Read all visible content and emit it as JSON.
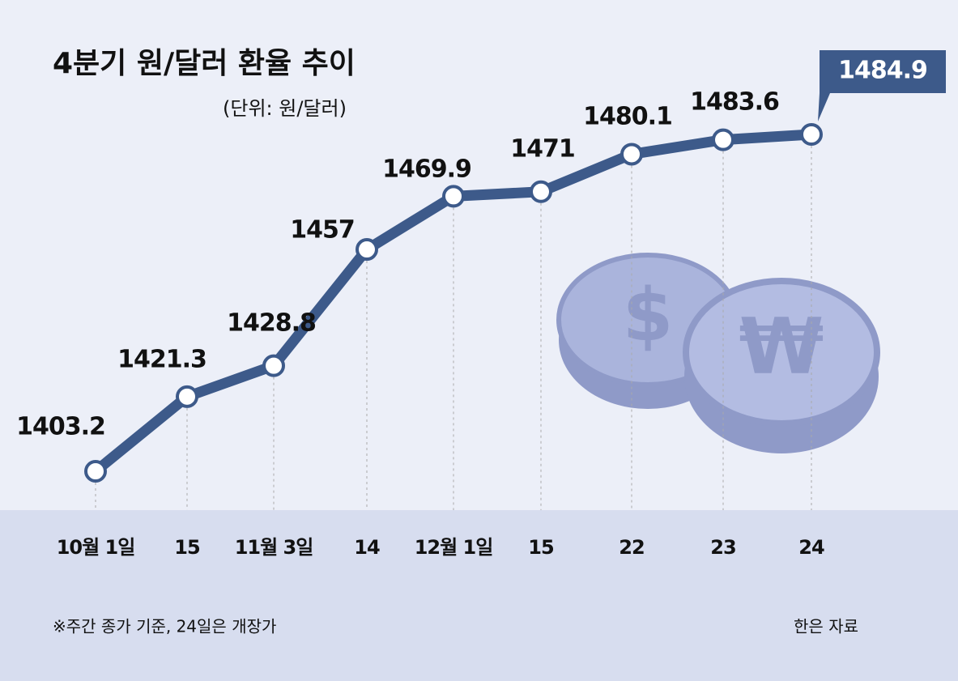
{
  "chart_data": {
    "type": "line",
    "title": "4분기 원/달러 환율 추이",
    "subtitle": "(단위: 원/달러)",
    "categories": [
      "10월 1일",
      "15",
      "11월 3일",
      "14",
      "12월 1일",
      "15",
      "22",
      "23",
      "24"
    ],
    "values": [
      1403.2,
      1421.3,
      1428.8,
      1457,
      1469.9,
      1471,
      1480.1,
      1483.6,
      1484.9
    ],
    "color": "#3d5a8a",
    "note": "※주간 종가 기준, 24일은 개장가",
    "source": "한은 자료"
  }
}
